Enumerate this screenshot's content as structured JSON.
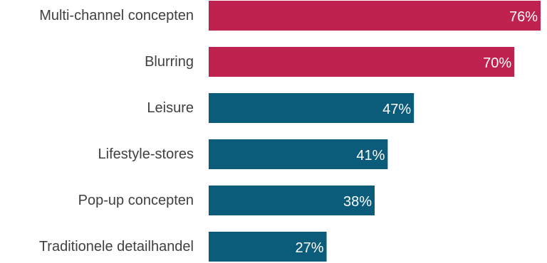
{
  "chart_data": {
    "type": "bar",
    "orientation": "horizontal",
    "categories": [
      "Multi-channel concepten",
      "Blurring",
      "Leisure",
      "Lifestyle-stores",
      "Pop-up concepten",
      "Traditionele detailhandel"
    ],
    "values": [
      76,
      70,
      47,
      41,
      38,
      27
    ],
    "value_labels": [
      "76%",
      "70%",
      "47%",
      "41%",
      "38%",
      "27%"
    ],
    "bar_colors": [
      "#C0224F",
      "#C0224F",
      "#0B5C7A",
      "#0B5C7A",
      "#0B5C7A",
      "#0B5C7A"
    ],
    "title": "",
    "xlabel": "",
    "ylabel": "",
    "xlim": [
      0,
      76
    ],
    "grid": false,
    "legend": "none"
  }
}
